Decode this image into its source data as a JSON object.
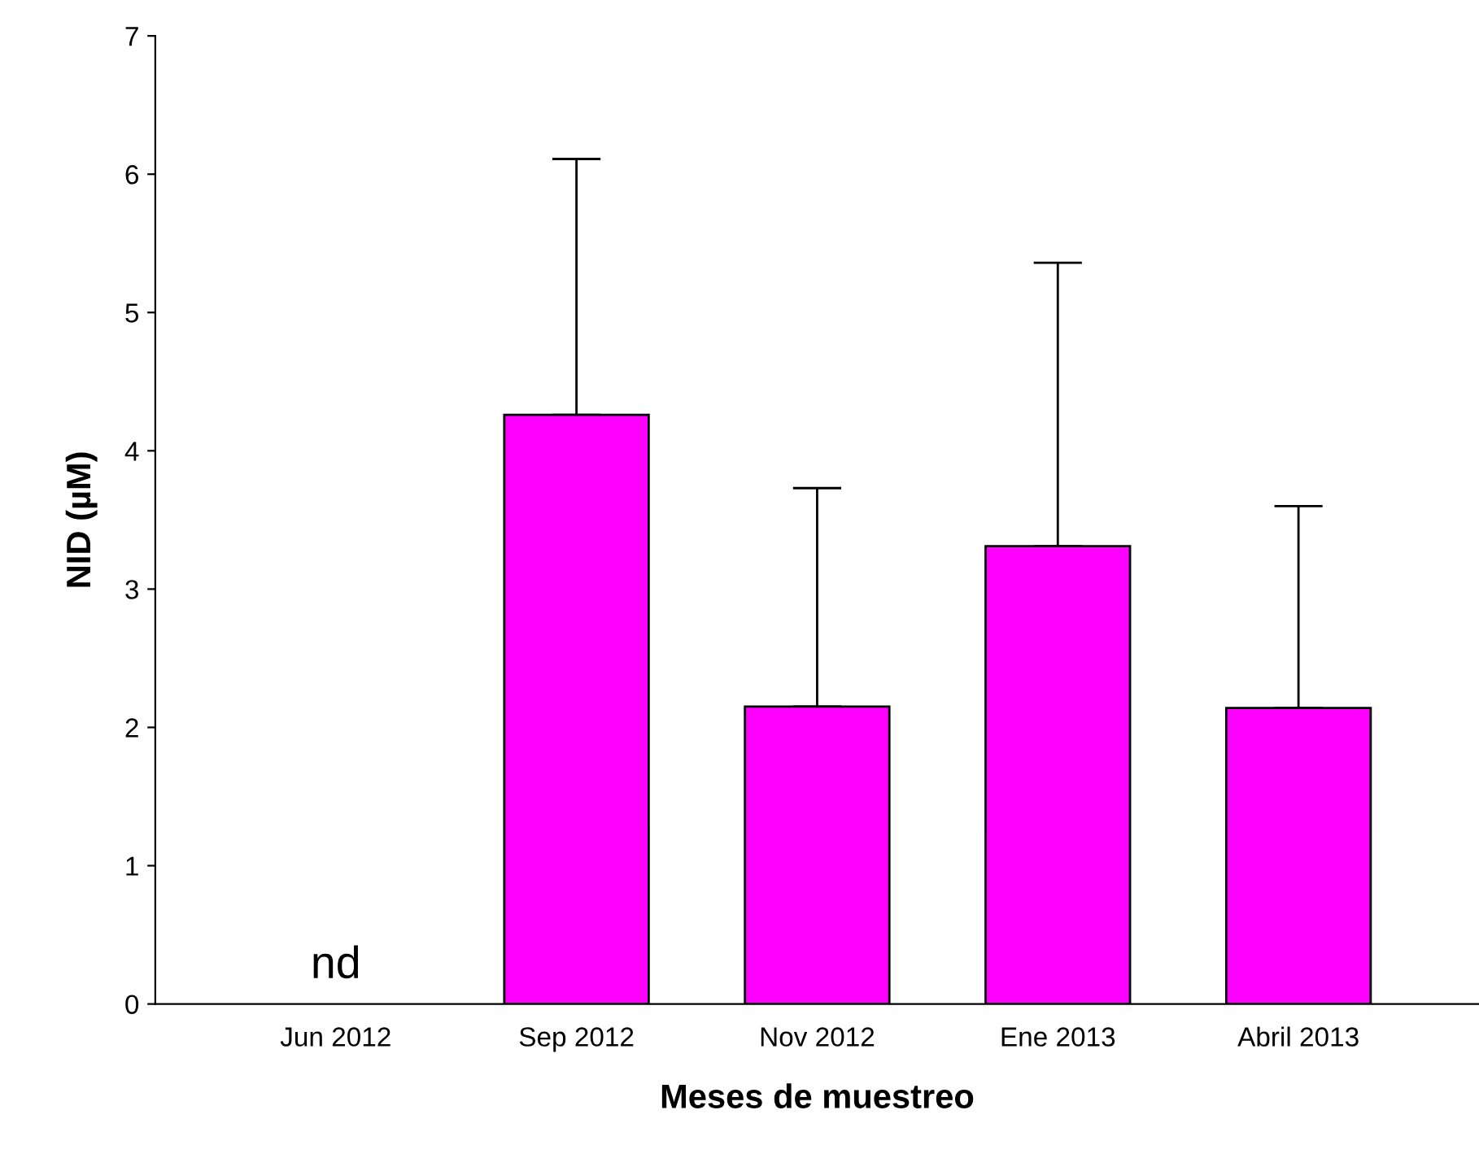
{
  "chart_data": {
    "type": "bar",
    "xlabel": "Meses de muestreo",
    "ylabel": "NID (µM)",
    "categories": [
      "Jun 2012",
      "Sep 2012",
      "Nov 2012",
      "Ene 2013",
      "Abril 2013"
    ],
    "values": [
      null,
      4.26,
      2.15,
      3.31,
      2.14
    ],
    "errors": [
      null,
      [
        4.26,
        6.11
      ],
      [
        2.15,
        3.73
      ],
      [
        3.31,
        5.36
      ],
      [
        2.14,
        3.6
      ]
    ],
    "color": "#ff00ff",
    "ylim": [
      0,
      7
    ],
    "yticks": [
      0,
      1,
      2,
      3,
      4,
      5,
      6,
      7
    ],
    "grid": false,
    "annotations": [
      "nd"
    ]
  }
}
